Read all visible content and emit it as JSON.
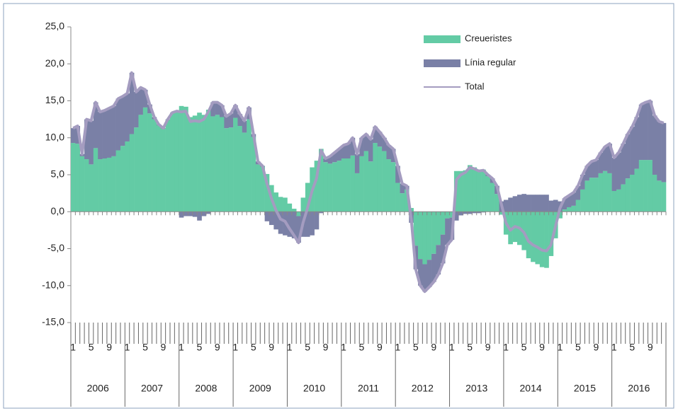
{
  "chart_data": {
    "type": "stacked-bar-line",
    "categories": [
      "1",
      null,
      null,
      null,
      "5",
      null,
      null,
      null,
      "9",
      null,
      null,
      null,
      "1",
      null,
      null,
      null,
      "5",
      null,
      null,
      null,
      "9",
      null,
      null,
      null,
      "1",
      null,
      null,
      null,
      "5",
      null,
      null,
      null,
      "9",
      null,
      null,
      null,
      "1",
      null,
      null,
      null,
      "5",
      null,
      null,
      null,
      "9",
      null,
      null,
      null,
      "1",
      null,
      null,
      null,
      "5",
      null,
      null,
      null,
      "9",
      null,
      null,
      null,
      "1",
      null,
      null,
      null,
      "5",
      null,
      null,
      null,
      "9",
      null,
      null,
      null,
      "1",
      null,
      null,
      null,
      "5",
      null,
      null,
      null,
      "9",
      null,
      null,
      null,
      "1",
      null,
      null,
      null,
      "5",
      null,
      null,
      null,
      "9",
      null,
      null,
      null,
      "1",
      null,
      null,
      null,
      "5",
      null,
      null,
      null,
      "9",
      null,
      null,
      null,
      "1",
      null,
      null,
      null,
      "5",
      null,
      null,
      null,
      "9",
      null,
      null,
      null,
      "1",
      null,
      null,
      null,
      "5",
      null,
      null,
      null,
      "9",
      null,
      null,
      null
    ],
    "groups": [
      "2006",
      "2007",
      "2008",
      "2009",
      "2010",
      "2011",
      "2012",
      "2013",
      "2014",
      "2015",
      "2016"
    ],
    "series": [
      {
        "name": "Creueristes",
        "color": "#63cba5",
        "kind": "bar",
        "values": [
          9.3,
          9.2,
          7.5,
          7.1,
          6.4,
          8.6,
          7.1,
          7.2,
          7.3,
          7.5,
          8.3,
          8.9,
          9.5,
          10.5,
          11.4,
          13.1,
          14.1,
          13.3,
          12.5,
          11.7,
          11.2,
          12.4,
          13.3,
          13.6,
          14.3,
          14.2,
          12.8,
          13.0,
          13.4,
          13.1,
          13.8,
          12.9,
          13.1,
          12.8,
          11.3,
          11.4,
          12.7,
          11.6,
          10.7,
          12.5,
          10.1,
          6.4,
          6.1,
          5.1,
          3.6,
          2.6,
          2.0,
          1.9,
          1.1,
          0.4,
          -0.6,
          1.9,
          3.9,
          6.0,
          6.9,
          8.5,
          6.7,
          6.5,
          6.7,
          6.9,
          7.2,
          7.2,
          7.6,
          5.2,
          7.5,
          8.2,
          6.8,
          9.3,
          8.8,
          8.2,
          7.1,
          6.7,
          3.9,
          2.5,
          3.0,
          0.5,
          -4.6,
          -6.4,
          -7.1,
          -6.5,
          -5.7,
          -4.5,
          -3.1,
          -0.9,
          -0.8,
          5.5,
          5.5,
          5.6,
          6.3,
          6.0,
          5.7,
          5.7,
          4.8,
          3.9,
          2.4,
          -0.4,
          -3.1,
          -4.4,
          -4.1,
          -4.5,
          -5.2,
          -6.3,
          -6.8,
          -7.1,
          -7.5,
          -7.6,
          -6.0,
          -3.6,
          -0.9,
          0.3,
          0.6,
          0.8,
          1.6,
          3.0,
          4.2,
          4.6,
          4.6,
          5.2,
          5.5,
          5.2,
          2.8,
          3.0,
          3.7,
          4.5,
          5.0,
          5.8,
          7.0,
          7.0,
          7.0,
          5.0,
          4.2,
          4.0
        ]
      },
      {
        "name": "Línia regular",
        "color": "#7a80a6",
        "kind": "bar",
        "values": [
          2.0,
          2.4,
          0.3,
          5.4,
          5.9,
          6.2,
          6.4,
          6.5,
          6.7,
          6.8,
          7.0,
          6.7,
          6.5,
          8.3,
          4.8,
          3.7,
          2.4,
          1.2,
          0.3,
          0.1,
          0.1,
          0.1,
          0.1,
          0.0,
          -0.8,
          -0.6,
          -0.6,
          -0.7,
          -1.2,
          -0.6,
          -0.3,
          1.9,
          1.7,
          1.6,
          1.6,
          1.9,
          1.7,
          1.6,
          1.6,
          1.6,
          0.4,
          0.4,
          0.1,
          -1.3,
          -1.8,
          -2.4,
          -3.0,
          -3.2,
          -3.4,
          -3.6,
          -3.6,
          -3.4,
          -3.4,
          -3.2,
          -2.4,
          -0.2,
          0.5,
          1.0,
          1.3,
          1.6,
          1.8,
          2.0,
          2.4,
          2.6,
          2.5,
          2.3,
          3.0,
          2.2,
          2.0,
          1.8,
          1.9,
          1.8,
          2.3,
          1.3,
          0.5,
          -1.5,
          -3.2,
          -3.6,
          -3.7,
          -3.7,
          -3.8,
          -4.0,
          -3.9,
          -3.6,
          -3.0,
          -1.2,
          -0.5,
          -0.3,
          -0.3,
          -0.2,
          -0.2,
          -0.1,
          0.2,
          0.6,
          1.1,
          1.4,
          1.6,
          1.9,
          2.1,
          2.3,
          2.4,
          2.3,
          2.3,
          2.3,
          2.3,
          2.3,
          1.5,
          1.6,
          1.4,
          1.5,
          1.6,
          1.8,
          1.9,
          2.0,
          2.0,
          2.2,
          2.4,
          2.8,
          3.3,
          4.0,
          4.5,
          5.0,
          5.5,
          6.0,
          6.5,
          7.0,
          7.5,
          7.8,
          8.0,
          8.0,
          8.0,
          8.0
        ]
      },
      {
        "name": "Total",
        "color": "#a49cc0",
        "kind": "line",
        "values": [
          11.3,
          11.6,
          7.8,
          12.5,
          12.3,
          14.8,
          13.5,
          13.7,
          14.0,
          14.3,
          15.3,
          15.6,
          16.0,
          18.8,
          16.2,
          16.8,
          16.5,
          14.5,
          12.8,
          11.8,
          11.3,
          12.5,
          13.4,
          13.6,
          13.5,
          13.6,
          12.2,
          12.3,
          12.2,
          12.5,
          13.5,
          14.8,
          14.8,
          14.4,
          12.9,
          13.3,
          14.4,
          13.2,
          12.3,
          14.1,
          10.5,
          6.8,
          6.2,
          3.8,
          1.8,
          0.2,
          -1.0,
          -1.3,
          -2.3,
          -3.2,
          -4.2,
          -1.5,
          0.5,
          2.8,
          4.5,
          8.3,
          7.2,
          7.5,
          8.0,
          8.5,
          9.0,
          9.2,
          10.0,
          7.8,
          10.0,
          10.5,
          9.8,
          11.5,
          10.8,
          10.0,
          9.0,
          8.5,
          6.2,
          3.8,
          3.5,
          -1.0,
          -7.8,
          -10.0,
          -10.8,
          -10.2,
          -9.5,
          -8.5,
          -7.0,
          -4.5,
          -3.8,
          4.3,
          5.0,
          5.3,
          6.0,
          5.8,
          5.5,
          5.6,
          5.0,
          4.5,
          3.5,
          1.0,
          -1.5,
          -2.5,
          -2.0,
          -2.2,
          -2.8,
          -4.0,
          -4.5,
          -4.8,
          -5.2,
          -5.3,
          -4.5,
          -2.0,
          0.5,
          1.8,
          2.2,
          2.6,
          3.5,
          5.0,
          6.2,
          6.8,
          7.0,
          8.0,
          8.8,
          9.2,
          7.3,
          8.0,
          9.2,
          10.5,
          11.5,
          12.8,
          14.5,
          14.8,
          15.0,
          13.0,
          12.2,
          12.0
        ]
      }
    ],
    "ylim": [
      -15,
      25
    ],
    "yticks": [
      {
        "value": -15,
        "label": "-15,0"
      },
      {
        "value": -10,
        "label": "-10,0"
      },
      {
        "value": -5,
        "label": "-5,0"
      },
      {
        "value": 0,
        "label": "0,0"
      },
      {
        "value": 5,
        "label": "5,0"
      },
      {
        "value": 10,
        "label": "10,0"
      },
      {
        "value": 15,
        "label": "15,0"
      },
      {
        "value": 20,
        "label": "20,0"
      },
      {
        "value": 25,
        "label": "25,0"
      }
    ],
    "legend": "top-right"
  }
}
